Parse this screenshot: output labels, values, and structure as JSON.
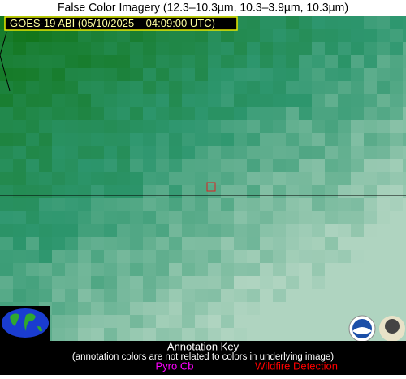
{
  "header": {
    "title": "False Color Imagery (12.3–10.3µm, 10.3–3.9µm, 10.3µm)",
    "timestamp": "GOES-19 ABI (05/10/2025 – 04:09:00 UTC)"
  },
  "annotation_key": {
    "title": "Annotation Key",
    "note": "(annotation colors are not related to colors in underlying image)",
    "items": [
      {
        "label": "Pyro Cb",
        "color": "#ff00ff"
      },
      {
        "label": "Wildfire Detection",
        "color": "#ff0000"
      }
    ]
  }
}
